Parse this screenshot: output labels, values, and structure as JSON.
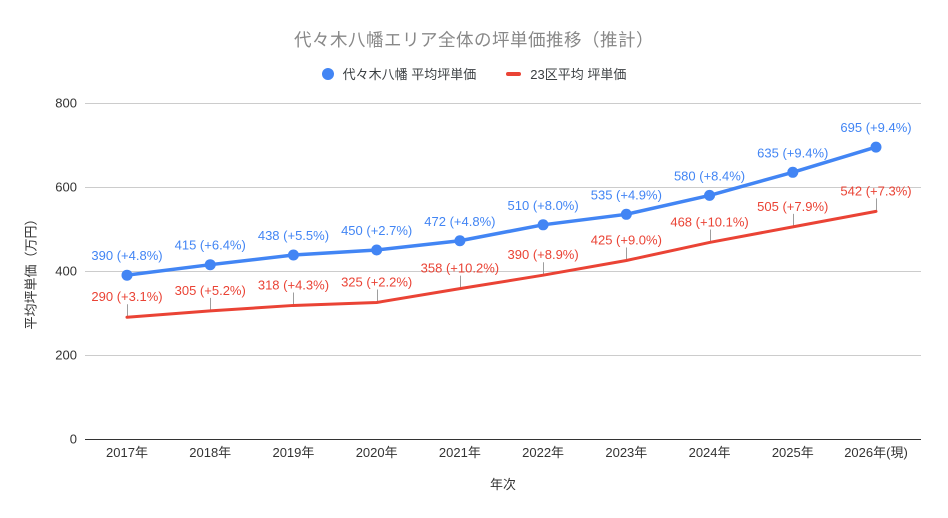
{
  "chart_data": {
    "type": "line",
    "title": "代々木八幡エリア全体の坪単価推移（推計）",
    "xlabel": "年次",
    "ylabel": "平均坪単価（万円）",
    "categories": [
      "2017年",
      "2018年",
      "2019年",
      "2020年",
      "2021年",
      "2022年",
      "2023年",
      "2024年",
      "2025年",
      "2026年(現)"
    ],
    "ylim": [
      0,
      800
    ],
    "yticks": [
      0,
      200,
      400,
      600,
      800
    ],
    "grid": true,
    "legend_position": "top",
    "series": [
      {
        "name": "代々木八幡 平均坪単価",
        "color": "#4285F4",
        "marker": "circle",
        "values": [
          390,
          415,
          438,
          450,
          472,
          510,
          535,
          580,
          635,
          695
        ],
        "point_labels": [
          "390 (+4.8%)",
          "415 (+6.4%)",
          "438 (+5.5%)",
          "450 (+2.7%)",
          "472 (+4.8%)",
          "510 (+8.0%)",
          "535 (+4.9%)",
          "580 (+8.4%)",
          "635 (+9.4%)",
          "695 (+9.4%)"
        ]
      },
      {
        "name": "23区平均 坪単価",
        "color": "#EA4335",
        "marker": "none",
        "values": [
          290,
          305,
          318,
          325,
          358,
          390,
          425,
          468,
          505,
          542
        ],
        "point_labels": [
          "290 (+3.1%)",
          "305 (+5.2%)",
          "318 (+4.3%)",
          "325 (+2.2%)",
          "358 (+10.2%)",
          "390 (+8.9%)",
          "425 (+9.0%)",
          "468 (+10.1%)",
          "505 (+7.9%)",
          "542 (+7.3%)"
        ]
      }
    ]
  },
  "colors": {
    "background": "#ffffff",
    "title_text": "#888888",
    "tick_text": "#333333",
    "gridline": "#cccccc",
    "axis_baseline": "#333333",
    "annotation_stem": "#9e9e9e",
    "series_blue": "#4285F4",
    "series_red": "#EA4335"
  }
}
